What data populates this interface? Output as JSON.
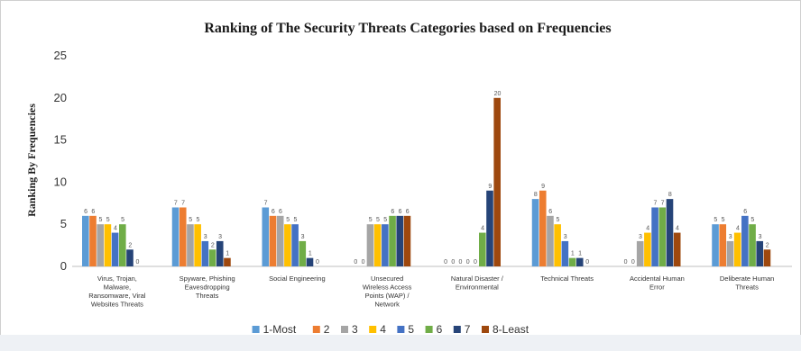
{
  "chart_data": {
    "type": "bar",
    "title": "Ranking of The Security Threats Categories based on Frequencies",
    "ylabel": "Ranking By Frequencies",
    "xlabel": "",
    "ylim": [
      0,
      25
    ],
    "yticks": [
      0,
      5,
      10,
      15,
      20,
      25
    ],
    "grid": false,
    "legend_position": "bottom",
    "categories": [
      [
        "Virus, Trojan,",
        "Malware,",
        "Ransomware, Viral",
        "Websites Threats"
      ],
      [
        "Spyware, Phishing",
        "Eavesdropping",
        "Threats"
      ],
      [
        "Social Engineering"
      ],
      [
        "Unsecured",
        "Wireless Access",
        "Points (WAP) /",
        "Network"
      ],
      [
        "Natural Disaster /",
        "Environmental"
      ],
      [
        "Technical Threats"
      ],
      [
        "Accidental Human",
        "Error"
      ],
      [
        "Deliberate Human",
        "Threats"
      ]
    ],
    "series": [
      {
        "name": "1-Most",
        "color": "#5b9bd5",
        "values": [
          6,
          7,
          7,
          0,
          0,
          8,
          0,
          5
        ]
      },
      {
        "name": "2",
        "color": "#ed7d31",
        "values": [
          6,
          7,
          6,
          0,
          0,
          9,
          0,
          5
        ]
      },
      {
        "name": "3",
        "color": "#a5a5a5",
        "values": [
          5,
          5,
          6,
          5,
          0,
          6,
          3,
          3
        ]
      },
      {
        "name": "4",
        "color": "#ffc000",
        "values": [
          5,
          5,
          5,
          5,
          0,
          5,
          4,
          4
        ]
      },
      {
        "name": "5",
        "color": "#4472c4",
        "values": [
          4,
          3,
          5,
          5,
          0,
          3,
          7,
          6
        ]
      },
      {
        "name": "6",
        "color": "#70ad47",
        "values": [
          5,
          2,
          3,
          6,
          4,
          1,
          7,
          5
        ]
      },
      {
        "name": "7",
        "color": "#264478",
        "values": [
          2,
          3,
          1,
          6,
          9,
          1,
          8,
          3
        ]
      },
      {
        "name": "8-Least",
        "color": "#9e480e",
        "values": [
          0,
          1,
          0,
          6,
          20,
          0,
          4,
          2
        ]
      }
    ]
  }
}
